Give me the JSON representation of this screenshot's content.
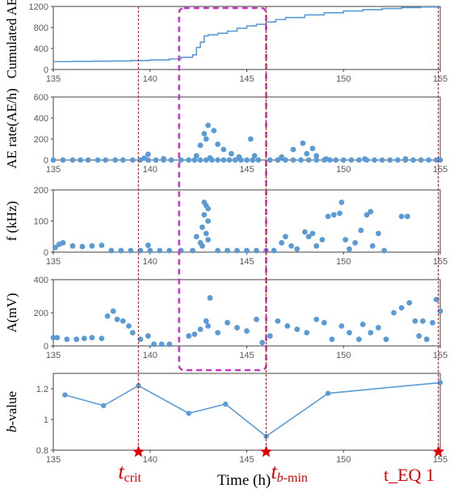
{
  "chart_data": {
    "type": "scatter",
    "shared_x_axis": {
      "label": "Time (h)",
      "ticks": [
        135,
        140,
        145,
        150,
        155
      ],
      "xlim": [
        135,
        155
      ]
    },
    "colors": {
      "series": "#5b9bd5",
      "marker": "#e00000",
      "box": "#cc33cc",
      "frame": "#404040"
    },
    "highlight_box": {
      "x_range": [
        141.5,
        146.0
      ],
      "style": "dashed"
    },
    "vertical_markers": [
      {
        "id": "crit",
        "x": 139.4,
        "main": "t",
        "sub": "crit"
      },
      {
        "id": "bmin",
        "x": 146.0,
        "main": "t",
        "sub": "b-min"
      },
      {
        "id": "eq1",
        "x": 154.9,
        "main": "t",
        "label": "t_EQ 1"
      }
    ],
    "panels": [
      {
        "id": "cum_ae",
        "type": "line",
        "ylabel": "Cumulated AE",
        "ylim": [
          0,
          1200
        ],
        "yticks": [
          0,
          400,
          800,
          1200
        ],
        "series": [
          {
            "x": [
              135,
              136,
              137,
              138,
              139,
              140,
              141,
              141.6,
              142.2,
              142.4,
              142.6,
              142.8,
              143,
              143.5,
              144,
              144.5,
              145,
              145.5,
              146,
              146.5,
              147,
              148,
              149,
              150,
              151,
              152,
              153,
              154,
              155
            ],
            "values": [
              150,
              155,
              158,
              163,
              170,
              182,
              200,
              232,
              280,
              420,
              520,
              640,
              660,
              690,
              730,
              785,
              830,
              860,
              905,
              950,
              990,
              1040,
              1080,
              1115,
              1140,
              1160,
              1178,
              1190,
              1200
            ]
          }
        ]
      },
      {
        "id": "ae_rate",
        "type": "scatter",
        "ylabel": "AE rate(AE/h)",
        "ylim": [
          0,
          600
        ],
        "yticks": [
          0,
          200,
          400,
          600
        ],
        "series": [
          {
            "points": [
              [
                135,
                0
              ],
              [
                135.5,
                0
              ],
              [
                136,
                0
              ],
              [
                136.4,
                0
              ],
              [
                136.8,
                0
              ],
              [
                137.3,
                0
              ],
              [
                137.7,
                0
              ],
              [
                138.2,
                0
              ],
              [
                138.6,
                0
              ],
              [
                139.1,
                0
              ],
              [
                139.5,
                0
              ],
              [
                139.9,
                0
              ],
              [
                140.3,
                0
              ],
              [
                140.7,
                0
              ],
              [
                141.1,
                0
              ],
              [
                141.6,
                0
              ],
              [
                139.9,
                55
              ],
              [
                139.7,
                18
              ],
              [
                140.7,
                12
              ],
              [
                142,
                0
              ],
              [
                142.3,
                0
              ],
              [
                142.6,
                0
              ],
              [
                142.9,
                0
              ],
              [
                143.2,
                0
              ],
              [
                143.5,
                0
              ],
              [
                143.8,
                0
              ],
              [
                144.1,
                0
              ],
              [
                144.4,
                0
              ],
              [
                144.7,
                0
              ],
              [
                145,
                0
              ],
              [
                145.3,
                0
              ],
              [
                145.6,
                0
              ],
              [
                142.8,
                250
              ],
              [
                143,
                330
              ],
              [
                143.3,
                280
              ],
              [
                142.9,
                200
              ],
              [
                143.5,
                150
              ],
              [
                142.6,
                140
              ],
              [
                143.8,
                100
              ],
              [
                144.2,
                60
              ],
              [
                142.4,
                40
              ],
              [
                143.1,
                20
              ],
              [
                144.6,
                30
              ],
              [
                145.2,
                200
              ],
              [
                145.4,
                40
              ],
              [
                146.2,
                0
              ],
              [
                146.6,
                0
              ],
              [
                147,
                0
              ],
              [
                147.4,
                0
              ],
              [
                147.8,
                0
              ],
              [
                148.2,
                0
              ],
              [
                148.6,
                0
              ],
              [
                149,
                0
              ],
              [
                146.8,
                30
              ],
              [
                147.4,
                100
              ],
              [
                147.9,
                160
              ],
              [
                148.1,
                60
              ],
              [
                148.4,
                110
              ],
              [
                148.6,
                40
              ],
              [
                149.3,
                0
              ],
              [
                149.6,
                0
              ],
              [
                150,
                0
              ],
              [
                150.4,
                0
              ],
              [
                150.8,
                0
              ],
              [
                151.2,
                0
              ],
              [
                151.6,
                0
              ],
              [
                152,
                0
              ],
              [
                152.4,
                0
              ],
              [
                152.8,
                0
              ],
              [
                153.2,
                0
              ],
              [
                153.6,
                0
              ],
              [
                154,
                0
              ],
              [
                154.4,
                0
              ],
              [
                154.8,
                0
              ],
              [
                155,
                0
              ],
              [
                149.1,
                10
              ],
              [
                151.1,
                10
              ],
              [
                153.2,
                10
              ]
            ]
          }
        ]
      },
      {
        "id": "freq",
        "type": "scatter",
        "ylabel": "f (kHz)",
        "ylim": [
          0,
          200
        ],
        "yticks": [
          0,
          100,
          200
        ],
        "series": [
          {
            "points": [
              [
                135.1,
                15
              ],
              [
                135.3,
                25
              ],
              [
                135.5,
                30
              ],
              [
                136,
                20
              ],
              [
                136.5,
                18
              ],
              [
                137,
                20
              ],
              [
                137.5,
                22
              ],
              [
                138,
                5
              ],
              [
                138.5,
                5
              ],
              [
                139,
                5
              ],
              [
                139.5,
                5
              ],
              [
                139.9,
                22
              ],
              [
                140,
                5
              ],
              [
                140.5,
                5
              ],
              [
                141,
                5
              ],
              [
                141.6,
                5
              ],
              [
                142.2,
                5
              ],
              [
                142.4,
                50
              ],
              [
                142.7,
                80
              ],
              [
                142.8,
                120
              ],
              [
                142.9,
                150
              ],
              [
                143,
                140
              ],
              [
                142.8,
                160
              ],
              [
                143,
                100
              ],
              [
                142.6,
                30
              ],
              [
                142.9,
                60
              ],
              [
                143,
                40
              ],
              [
                142.7,
                20
              ],
              [
                143.5,
                5
              ],
              [
                144,
                5
              ],
              [
                144.5,
                5
              ],
              [
                145,
                5
              ],
              [
                145.5,
                5
              ],
              [
                146,
                5
              ],
              [
                146.4,
                5
              ],
              [
                146.8,
                30
              ],
              [
                147,
                50
              ],
              [
                147.3,
                20
              ],
              [
                147.6,
                10
              ],
              [
                148,
                65
              ],
              [
                148.2,
                50
              ],
              [
                148.4,
                60
              ],
              [
                148.6,
                20
              ],
              [
                148.9,
                40
              ],
              [
                149.2,
                115
              ],
              [
                149.5,
                120
              ],
              [
                149.8,
                125
              ],
              [
                149.9,
                160
              ],
              [
                150.1,
                40
              ],
              [
                150.3,
                10
              ],
              [
                150.6,
                30
              ],
              [
                150.9,
                70
              ],
              [
                151.2,
                120
              ],
              [
                151.4,
                130
              ],
              [
                151.5,
                20
              ],
              [
                151.8,
                60
              ],
              [
                152.1,
                5
              ],
              [
                153,
                115
              ],
              [
                153.3,
                115
              ]
            ]
          }
        ]
      },
      {
        "id": "amp",
        "type": "scatter",
        "ylabel": "A(mV)",
        "ylim": [
          0,
          400
        ],
        "yticks": [
          0,
          200,
          400
        ],
        "series": [
          {
            "points": [
              [
                135,
                50
              ],
              [
                135.2,
                50
              ],
              [
                135.7,
                40
              ],
              [
                136.2,
                40
              ],
              [
                136.6,
                45
              ],
              [
                137,
                50
              ],
              [
                137.5,
                45
              ],
              [
                137.8,
                180
              ],
              [
                138.1,
                210
              ],
              [
                138.3,
                160
              ],
              [
                138.6,
                150
              ],
              [
                138.9,
                120
              ],
              [
                139.1,
                80
              ],
              [
                139.5,
                40
              ],
              [
                139.9,
                60
              ],
              [
                140.2,
                10
              ],
              [
                140.6,
                10
              ],
              [
                141,
                10
              ],
              [
                142,
                60
              ],
              [
                142.3,
                70
              ],
              [
                142.6,
                100
              ],
              [
                142.9,
                150
              ],
              [
                143,
                120
              ],
              [
                143.1,
                290
              ],
              [
                143.5,
                80
              ],
              [
                144,
                140
              ],
              [
                144.5,
                110
              ],
              [
                145,
                90
              ],
              [
                145.5,
                160
              ],
              [
                145.8,
                20
              ],
              [
                146.2,
                60
              ],
              [
                146.6,
                150
              ],
              [
                147.1,
                120
              ],
              [
                147.6,
                100
              ],
              [
                148.1,
                80
              ],
              [
                148.6,
                160
              ],
              [
                149,
                140
              ],
              [
                149.4,
                40
              ],
              [
                149.9,
                120
              ],
              [
                150.3,
                80
              ],
              [
                150.8,
                40
              ],
              [
                151,
                130
              ],
              [
                151.4,
                80
              ],
              [
                151.8,
                110
              ],
              [
                152.2,
                40
              ],
              [
                152.6,
                200
              ],
              [
                153,
                230
              ],
              [
                153.4,
                260
              ],
              [
                153.7,
                150
              ],
              [
                153.9,
                60
              ],
              [
                154.1,
                150
              ],
              [
                154.3,
                40
              ],
              [
                154.6,
                140
              ],
              [
                154.8,
                280
              ],
              [
                155,
                210
              ]
            ]
          }
        ]
      },
      {
        "id": "bvalue",
        "type": "line",
        "ylabel": "b-value",
        "ylim": [
          0.8,
          1.3
        ],
        "yticks": [
          0.8,
          1,
          1.2
        ],
        "ytick_labels": [
          "0.8",
          "1",
          "1.2"
        ],
        "series": [
          {
            "x": [
              135.6,
              137.6,
              139.4,
              142,
              143.9,
              146,
              149.2,
              155
            ],
            "values": [
              1.16,
              1.09,
              1.22,
              1.04,
              1.1,
              0.89,
              1.17,
              1.24
            ]
          }
        ]
      }
    ]
  }
}
